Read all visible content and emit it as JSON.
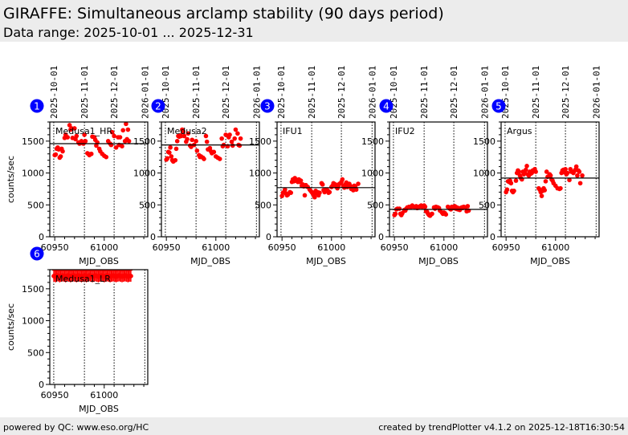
{
  "header": {
    "title": "GIRAFFE: Simultaneous arclamp stability (90 days period)",
    "range": "Data range: 2025-10-01 ... 2025-12-31"
  },
  "footer": {
    "left": "powered by QC: www.eso.org/HC",
    "right": "created by trendPlotter v4.1.2 on 2025-12-18T16:30:54"
  },
  "colors": {
    "points": "#ff0000",
    "badge": "#0000ff"
  },
  "chart_data": {
    "type": "scatter",
    "xlabel": "MJD_OBS",
    "ylabel": "counts/sec",
    "xlim": [
      60945,
      61044
    ],
    "ylim": [
      0,
      1800
    ],
    "xticks": [
      60950,
      61000
    ],
    "yticks": [
      0,
      500,
      1000,
      1500
    ],
    "date_markers": [
      {
        "label": "2025-10-01",
        "mjd": 60949
      },
      {
        "label": "2025-11-01",
        "mjd": 60980
      },
      {
        "label": "2025-12-01",
        "mjd": 61010
      },
      {
        "label": "2026-01-01",
        "mjd": 61041
      }
    ],
    "panels": [
      {
        "num": "1",
        "name": "Medusa1_HR",
        "mean": 1460,
        "x": [
          60950,
          60951,
          60952,
          60953,
          60954,
          60955,
          60956,
          60957,
          60958,
          60960,
          60961,
          60963,
          60965,
          60966,
          60967,
          60968,
          60970,
          60971,
          60972,
          60974,
          60975,
          60976,
          60977,
          60979,
          60980,
          60981,
          60983,
          60984,
          60985,
          60987,
          60988,
          60990,
          60991,
          60992,
          60993,
          60995,
          60996,
          60998,
          61000,
          61002,
          61004,
          61006,
          61007,
          61008,
          61010,
          61012,
          61014,
          61015,
          61016,
          61018,
          61019,
          61021,
          61022,
          61023,
          61024,
          61025
        ],
        "y": [
          1280,
          1290,
          1380,
          1400,
          1370,
          1240,
          1260,
          1380,
          1340,
          1550,
          1600,
          1560,
          1750,
          1680,
          1700,
          1550,
          1700,
          1530,
          1580,
          1480,
          1460,
          1470,
          1500,
          1460,
          1600,
          1500,
          1310,
          1300,
          1280,
          1300,
          1570,
          1560,
          1520,
          1430,
          1480,
          1380,
          1340,
          1300,
          1270,
          1250,
          1500,
          1460,
          1440,
          1640,
          1580,
          1400,
          1560,
          1440,
          1560,
          1420,
          1670,
          1500,
          1770,
          1530,
          1680,
          1500
        ]
      },
      {
        "num": "2",
        "name": "Medusa2",
        "mean": 1440,
        "x": [
          60950,
          60951,
          60952,
          60953,
          60954,
          60955,
          60956,
          60957,
          60959,
          60960,
          60961,
          60962,
          60963,
          60964,
          60965,
          60966,
          60967,
          60968,
          60970,
          60971,
          60972,
          60974,
          60975,
          60976,
          60978,
          60980,
          60981,
          60983,
          60984,
          60985,
          60987,
          60988,
          60990,
          60991,
          60992,
          60994,
          60995,
          60996,
          60998,
          61000,
          61002,
          61004,
          61006,
          61007,
          61008,
          61010,
          61012,
          61013,
          61014,
          61016,
          61017,
          61019,
          61020,
          61022,
          61023,
          61024,
          61025
        ],
        "y": [
          1210,
          1230,
          1330,
          1320,
          1400,
          1260,
          1200,
          1180,
          1200,
          1380,
          1500,
          1580,
          1570,
          1590,
          1580,
          1680,
          1650,
          1580,
          1490,
          1530,
          1620,
          1430,
          1410,
          1520,
          1440,
          1500,
          1350,
          1280,
          1250,
          1260,
          1240,
          1220,
          1580,
          1490,
          1370,
          1390,
          1340,
          1310,
          1330,
          1260,
          1240,
          1220,
          1540,
          1420,
          1440,
          1600,
          1420,
          1560,
          1600,
          1490,
          1430,
          1540,
          1680,
          1620,
          1440,
          1430,
          1540
        ]
      },
      {
        "num": "3",
        "name": "IFU1",
        "mean": 770,
        "x": [
          60950,
          60951,
          60952,
          60953,
          60954,
          60955,
          60956,
          60958,
          60959,
          60960,
          60961,
          60962,
          60963,
          60964,
          60965,
          60966,
          60967,
          60968,
          60969,
          60970,
          60971,
          60972,
          60973,
          60974,
          60975,
          60976,
          60978,
          60979,
          60980,
          60981,
          60982,
          60983,
          60984,
          60985,
          60986,
          60987,
          60988,
          60990,
          60991,
          60992,
          60993,
          60994,
          60996,
          60997,
          60998,
          61000,
          61001,
          61002,
          61004,
          61005,
          61006,
          61007,
          61008,
          61010,
          61011,
          61012,
          61013,
          61014,
          61015,
          61016,
          61018,
          61019,
          61020,
          61022,
          61023,
          61024,
          61025,
          61027
        ],
        "y": [
          640,
          690,
          700,
          740,
          680,
          650,
          660,
          700,
          690,
          860,
          900,
          870,
          920,
          880,
          890,
          860,
          900,
          860,
          880,
          800,
          820,
          790,
          650,
          810,
          790,
          780,
          740,
          720,
          700,
          680,
          650,
          620,
          720,
          680,
          700,
          650,
          690,
          840,
          820,
          730,
          700,
          740,
          730,
          690,
          700,
          780,
          800,
          840,
          820,
          780,
          760,
          800,
          830,
          860,
          900,
          800,
          770,
          820,
          850,
          780,
          830,
          800,
          750,
          730,
          800,
          790,
          740,
          830
        ]
      },
      {
        "num": "4",
        "name": "IFU2",
        "mean": 430,
        "x": [
          60950,
          60951,
          60952,
          60953,
          60955,
          60956,
          60957,
          60958,
          60960,
          60961,
          60962,
          60963,
          60965,
          60966,
          60967,
          60968,
          60970,
          60971,
          60972,
          60973,
          60975,
          60976,
          60977,
          60978,
          60980,
          60981,
          60982,
          60983,
          60984,
          60985,
          60986,
          60987,
          60988,
          60990,
          60991,
          60992,
          60994,
          60995,
          60996,
          60998,
          60999,
          61000,
          61001,
          61002,
          61004,
          61005,
          61006,
          61007,
          61008,
          61010,
          61011,
          61012,
          61013,
          61014,
          61015,
          61016,
          61018,
          61019,
          61020,
          61022,
          61023,
          61024,
          61025
        ],
        "y": [
          340,
          360,
          430,
          440,
          440,
          360,
          340,
          370,
          420,
          410,
          440,
          460,
          470,
          460,
          470,
          490,
          470,
          470,
          480,
          450,
          470,
          480,
          490,
          470,
          490,
          470,
          400,
          390,
          360,
          340,
          330,
          350,
          360,
          460,
          440,
          470,
          460,
          450,
          410,
          380,
          360,
          380,
          370,
          350,
          470,
          460,
          440,
          430,
          470,
          450,
          480,
          440,
          460,
          430,
          450,
          420,
          460,
          450,
          470,
          460,
          400,
          480,
          410
        ]
      },
      {
        "num": "5",
        "name": "Argus",
        "mean": 920,
        "x": [
          60950,
          60951,
          60952,
          60953,
          60954,
          60955,
          60956,
          60957,
          60958,
          60960,
          60961,
          60962,
          60963,
          60964,
          60965,
          60966,
          60967,
          60968,
          60969,
          60970,
          60971,
          60972,
          60973,
          60974,
          60975,
          60976,
          60977,
          60978,
          60979,
          60980,
          60983,
          60984,
          60985,
          60986,
          60987,
          60988,
          60989,
          60990,
          60991,
          60992,
          60994,
          60995,
          60996,
          60997,
          60998,
          61000,
          61002,
          61004,
          61005,
          61006,
          61007,
          61008,
          61009,
          61010,
          61011,
          61012,
          61014,
          61015,
          61016,
          61018,
          61019,
          61020,
          61021,
          61022,
          61023,
          61024,
          61025,
          61027
        ],
        "y": [
          700,
          740,
          870,
          860,
          880,
          840,
          720,
          700,
          720,
          880,
          1000,
          1040,
          1020,
          960,
          920,
          900,
          1020,
          980,
          1000,
          1050,
          1110,
          980,
          960,
          1020,
          990,
          1000,
          1040,
          1030,
          1060,
          1020,
          760,
          740,
          700,
          640,
          720,
          760,
          730,
          870,
          1020,
          940,
          980,
          960,
          900,
          880,
          840,
          800,
          760,
          750,
          760,
          1000,
          1040,
          1050,
          1010,
          1060,
          980,
          1000,
          890,
          1060,
          1020,
          1000,
          1030,
          1050,
          1100,
          960,
          1040,
          1020,
          840,
          960
        ]
      },
      {
        "num": "6",
        "name": "Medusa1_LR",
        "mean": null,
        "x": [
          60949,
          60950,
          60951,
          60952,
          60953,
          60954,
          60955,
          60956,
          60957,
          60958,
          60959,
          60960,
          60961,
          60962,
          60963,
          60964,
          60965,
          60966,
          60967,
          60968,
          60969,
          60970,
          60971,
          60972,
          60973,
          60974,
          60975,
          60976,
          60977,
          60978,
          60979,
          60980,
          60981,
          60982,
          60983,
          60984,
          60985,
          60986,
          60987,
          60988,
          60989,
          60990,
          60991,
          60992,
          60993,
          60994,
          60995,
          60996,
          60997,
          60998,
          60999,
          61000,
          61001,
          61002,
          61003,
          61004,
          61005,
          61006,
          61007,
          61008,
          61009,
          61010,
          61011,
          61012,
          61013,
          61014,
          61015,
          61016,
          61017,
          61018,
          61019,
          61020,
          61021,
          61022,
          61023,
          61024,
          61025,
          61026,
          61027
        ],
        "y": [
          1700,
          1700,
          1690,
          1700,
          1710,
          1700,
          1690,
          1700,
          1700,
          1710,
          1700,
          1700,
          1690,
          1700,
          1710,
          1700,
          1700,
          1690,
          1700,
          1700,
          1710,
          1700,
          1700,
          1690,
          1700,
          1710,
          1700,
          1700,
          1690,
          1700,
          1700,
          1710,
          1700,
          1690,
          1700,
          1700,
          1710,
          1700,
          1700,
          1690,
          1700,
          1700,
          1710,
          1700,
          1700,
          1690,
          1700,
          1700,
          1710,
          1700,
          1700,
          1690,
          1700,
          1700,
          1710,
          1700,
          1700,
          1690,
          1700,
          1700,
          1710,
          1700,
          1700,
          1690,
          1700,
          1700,
          1710,
          1700,
          1700,
          1690,
          1700,
          1700,
          1710,
          1700,
          1700,
          1690,
          1700,
          1700,
          1700
        ],
        "err": 90
      }
    ]
  }
}
